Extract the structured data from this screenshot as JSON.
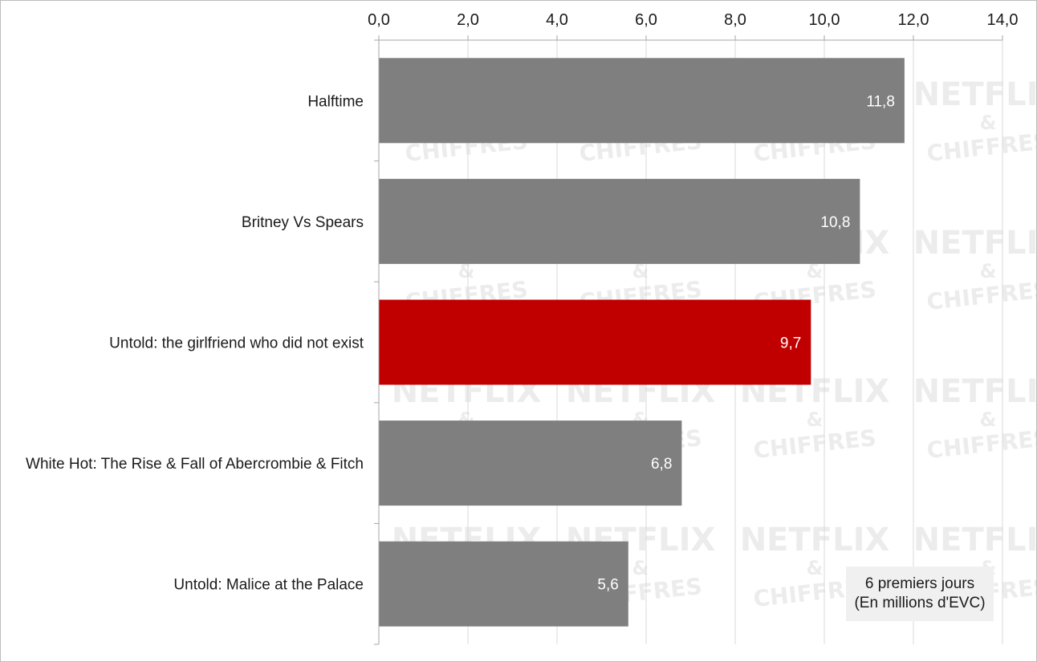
{
  "chart_data": {
    "type": "bar",
    "orientation": "horizontal",
    "categories": [
      "Halftime",
      "Britney Vs Spears",
      "Untold: the girlfriend who did not exist",
      "White Hot: The Rise & Fall of Abercrombie & Fitch",
      "Untold: Malice at the Palace"
    ],
    "values": [
      11.8,
      10.8,
      9.7,
      6.8,
      5.6
    ],
    "value_labels": [
      "11,8",
      "10,8",
      "9,7",
      "6,8",
      "5,6"
    ],
    "highlight_index": 2,
    "colors": {
      "default": "#7f7f7f",
      "highlight": "#c00000"
    },
    "x_ticks": [
      "0,0",
      "2,0",
      "4,0",
      "6,0",
      "8,0",
      "10,0",
      "12,0",
      "14,0"
    ],
    "xlim": [
      0,
      14
    ],
    "x_axis_position": "top",
    "grid": true,
    "title": "",
    "xlabel": "",
    "ylabel": "",
    "annotation": {
      "line1": "6 premiers jours",
      "line2": "(En millions d'EVC)"
    },
    "watermark": {
      "line1": "NETFLIX",
      "line2": "&",
      "line3": "CHIFFRES"
    }
  }
}
